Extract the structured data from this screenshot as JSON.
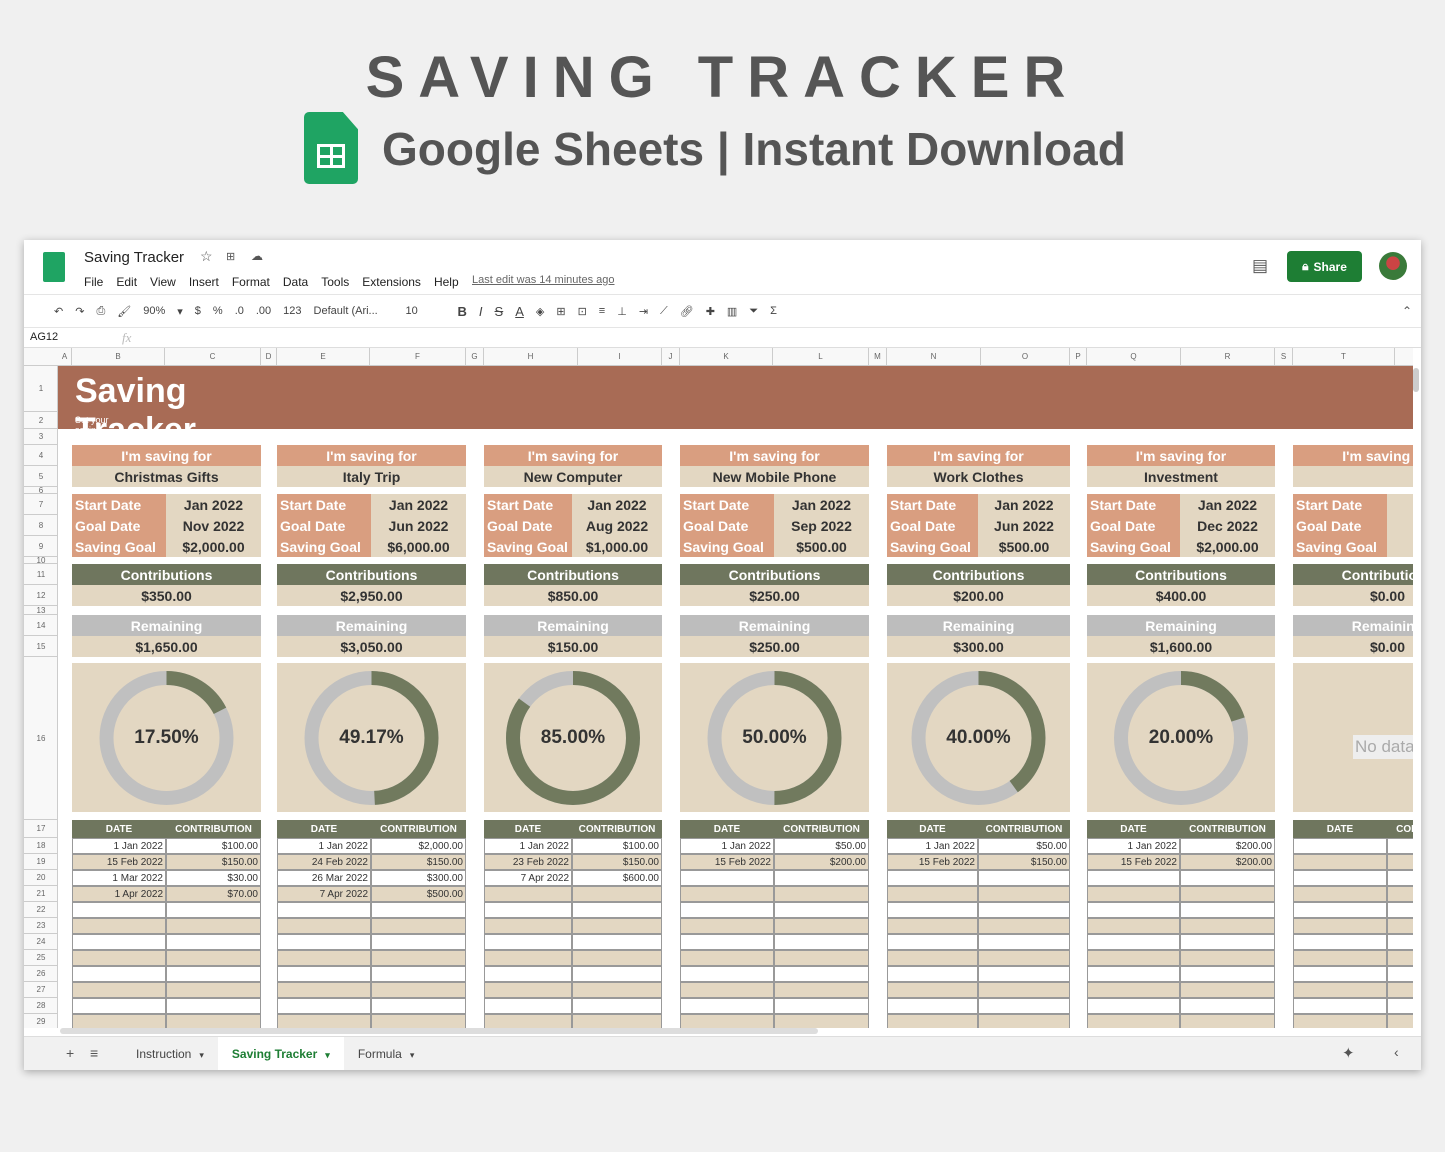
{
  "hero": {
    "title": "SAVING TRACKER",
    "subtitle": "Google Sheets | Instant Download"
  },
  "doc": {
    "title": "Saving Tracker",
    "menu": [
      "File",
      "Edit",
      "View",
      "Insert",
      "Format",
      "Data",
      "Tools",
      "Extensions",
      "Help"
    ],
    "last_edit": "Last edit was 14 minutes ago",
    "share": "Share"
  },
  "toolbar": {
    "zoom": "90%",
    "currency": "$",
    "percent": "%",
    "dec_less": ".0",
    "dec_more": ".00",
    "format": "123",
    "font": "Default (Ari...",
    "size": "10",
    "bold": "B",
    "italic": "I",
    "strike": "S",
    "textcolor": "A"
  },
  "formula": {
    "cell_ref": "AG12",
    "fx": "fx"
  },
  "columns": [
    "A",
    "B",
    "C",
    "D",
    "E",
    "F",
    "G",
    "H",
    "I",
    "J",
    "K",
    "L",
    "M",
    "N",
    "O",
    "P",
    "Q",
    "R",
    "S",
    "T"
  ],
  "rows": [
    "1",
    "2",
    "3",
    "4",
    "5",
    "6",
    "7",
    "8",
    "9",
    "10",
    "11",
    "12",
    "13",
    "14",
    "15",
    "16",
    "17",
    "18",
    "19",
    "20",
    "21",
    "22",
    "23",
    "24",
    "25",
    "26",
    "27",
    "28",
    "29"
  ],
  "banner": {
    "title": "Saving Tracker",
    "subtitle": "Set your saving goals and keep track of your progress as you contribute over time"
  },
  "colors": {
    "banner": "#a86b55",
    "salmon": "#d99e80",
    "beige": "#e3d7c2",
    "olive": "#6f765e",
    "grey": "#bdbdbd"
  },
  "labels": {
    "saving_for": "I'm saving for",
    "start": "Start Date",
    "goal_date": "Goal Date",
    "goal": "Saving Goal",
    "contributions": "Contributions",
    "remaining": "Remaining",
    "date": "DATE",
    "contribution": "CONTRIBUTION",
    "no_data": "No data"
  },
  "goals": [
    {
      "name": "Christmas Gifts",
      "start": "Jan 2022",
      "goal_date": "Nov 2022",
      "goal": "$2,000.00",
      "contributions": "$350.00",
      "remaining": "$1,650.00",
      "percent": 17.5,
      "percent_label": "17.50%",
      "entries": [
        [
          "1 Jan 2022",
          "$100.00"
        ],
        [
          "15 Feb 2022",
          "$150.00"
        ],
        [
          "1 Mar 2022",
          "$30.00"
        ],
        [
          "1 Apr 2022",
          "$70.00"
        ]
      ]
    },
    {
      "name": "Italy Trip",
      "start": "Jan 2022",
      "goal_date": "Jun 2022",
      "goal": "$6,000.00",
      "contributions": "$2,950.00",
      "remaining": "$3,050.00",
      "percent": 49.17,
      "percent_label": "49.17%",
      "entries": [
        [
          "1 Jan 2022",
          "$2,000.00"
        ],
        [
          "24 Feb 2022",
          "$150.00"
        ],
        [
          "26 Mar 2022",
          "$300.00"
        ],
        [
          "7 Apr 2022",
          "$500.00"
        ]
      ]
    },
    {
      "name": "New Computer",
      "start": "Jan 2022",
      "goal_date": "Aug 2022",
      "goal": "$1,000.00",
      "contributions": "$850.00",
      "remaining": "$150.00",
      "percent": 85,
      "percent_label": "85.00%",
      "entries": [
        [
          "1 Jan 2022",
          "$100.00"
        ],
        [
          "23 Feb 2022",
          "$150.00"
        ],
        [
          "7 Apr 2022",
          "$600.00"
        ]
      ]
    },
    {
      "name": "New Mobile Phone",
      "start": "Jan 2022",
      "goal_date": "Sep 2022",
      "goal": "$500.00",
      "contributions": "$250.00",
      "remaining": "$250.00",
      "percent": 50,
      "percent_label": "50.00%",
      "entries": [
        [
          "1 Jan 2022",
          "$50.00"
        ],
        [
          "15 Feb 2022",
          "$200.00"
        ]
      ]
    },
    {
      "name": "Work Clothes",
      "start": "Jan 2022",
      "goal_date": "Jun 2022",
      "goal": "$500.00",
      "contributions": "$200.00",
      "remaining": "$300.00",
      "percent": 40,
      "percent_label": "40.00%",
      "entries": [
        [
          "1 Jan 2022",
          "$50.00"
        ],
        [
          "15 Feb 2022",
          "$150.00"
        ]
      ]
    },
    {
      "name": "Investment",
      "start": "Jan 2022",
      "goal_date": "Dec 2022",
      "goal": "$2,000.00",
      "contributions": "$400.00",
      "remaining": "$1,600.00",
      "percent": 20,
      "percent_label": "20.00%",
      "entries": [
        [
          "1 Jan 2022",
          "$200.00"
        ],
        [
          "15 Feb 2022",
          "$200.00"
        ]
      ]
    },
    {
      "name": "",
      "start": "",
      "goal_date": "",
      "goal": "",
      "contributions": "$0.00",
      "remaining": "$0.00",
      "percent": null,
      "percent_label": "",
      "entries": []
    }
  ],
  "tabs": [
    {
      "label": "Instruction",
      "active": false
    },
    {
      "label": "Saving Tracker",
      "active": true
    },
    {
      "label": "Formula",
      "active": false
    }
  ]
}
